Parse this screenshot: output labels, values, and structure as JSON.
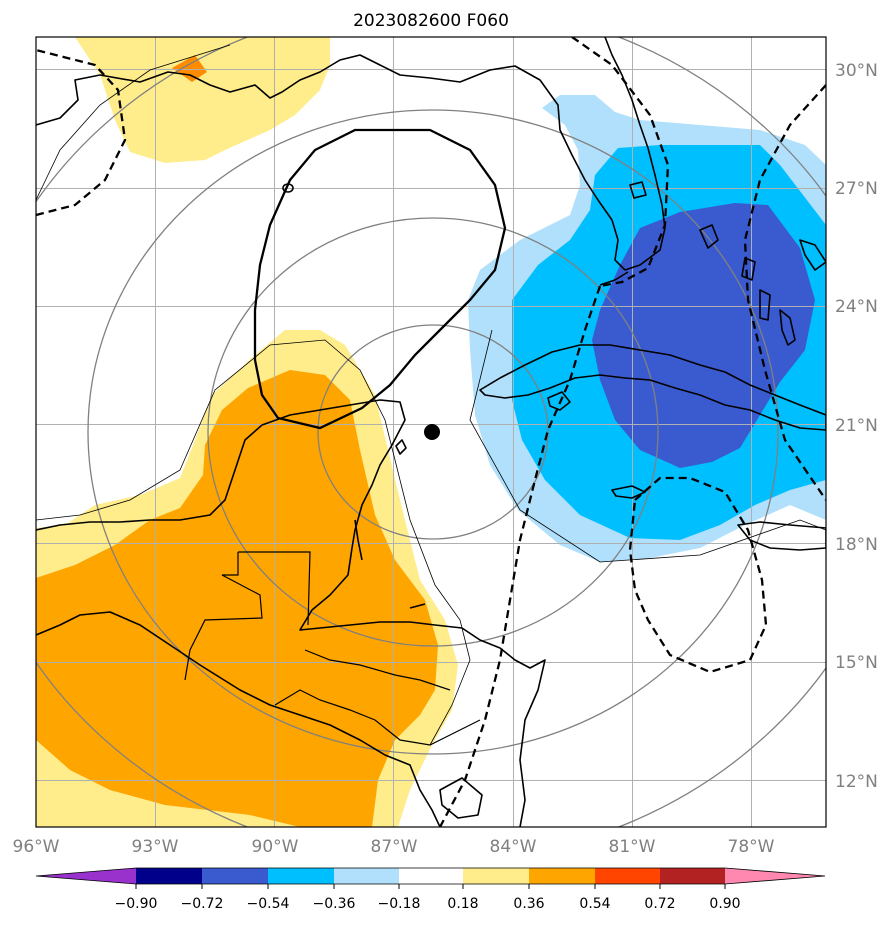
{
  "title": "2023082600 F060",
  "map": {
    "lon_labels": [
      "96°W",
      "93°W",
      "90°W",
      "87°W",
      "84°W",
      "81°W",
      "78°W"
    ],
    "lat_labels": [
      "30°N",
      "27°N",
      "24°N",
      "21°N",
      "18°N",
      "15°N",
      "12°N"
    ],
    "lon_values": [
      -96,
      -93,
      -90,
      -87,
      -84,
      -81,
      -78
    ],
    "lat_values": [
      30,
      27,
      24,
      21,
      18,
      15,
      12
    ],
    "extent": {
      "lon_min": -96,
      "lon_max": -76,
      "lat_min": 10.9,
      "lat_max": 30.7
    },
    "center_marker": {
      "lon": -86,
      "lat": 20.8
    }
  },
  "colorbar": {
    "tick_labels": [
      "−0.90",
      "−0.72",
      "−0.54",
      "−0.36",
      "−0.18",
      "0.18",
      "0.36",
      "0.54",
      "0.72",
      "0.90"
    ],
    "bins": [
      {
        "range": "< -0.90",
        "color": "#9932cc"
      },
      {
        "range": "-0.90 – -0.72",
        "color": "#00008b"
      },
      {
        "range": "-0.72 – -0.54",
        "color": "#3a5bcf"
      },
      {
        "range": "-0.54 – -0.36",
        "color": "#00bfff"
      },
      {
        "range": "-0.36 – -0.18",
        "color": "#b0e0fb"
      },
      {
        "range": "-0.18 – 0.18",
        "color": "#ffffff"
      },
      {
        "range": "0.18 – 0.36",
        "color": "#ffec8b"
      },
      {
        "range": "0.36 – 0.54",
        "color": "#ffa500"
      },
      {
        "range": "0.54 – 0.72",
        "color": "#ff4500"
      },
      {
        "range": "0.72 – 0.90",
        "color": "#b22222"
      },
      {
        "range": "> 0.90",
        "color": "#ff88b0"
      }
    ]
  },
  "colors": {
    "positive_weak": "#ffec8b",
    "positive_mid": "#ffa500",
    "positive_strong": "#ff8c00",
    "negative_weak": "#b0e0fb",
    "negative_mid": "#00bfff",
    "negative_strong": "#3a5bcf",
    "grid": "#b0b0b0",
    "range_ring": "#808080"
  }
}
